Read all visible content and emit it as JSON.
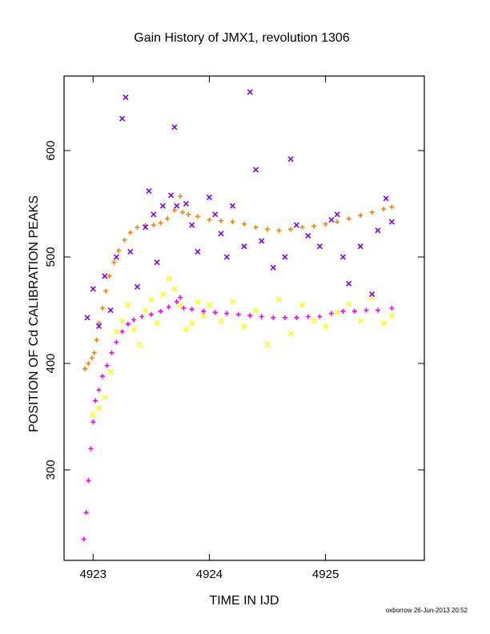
{
  "chart_data": {
    "type": "scatter",
    "title": "Gain History of JMX1, revolution 1306",
    "xlabel": "TIME IN IJD",
    "ylabel": "POSITION OF Cd CALIBRATION PEAKS",
    "xlim": [
      4922.75,
      4925.85
    ],
    "ylim": [
      215,
      670
    ],
    "xticks": [
      "4923",
      "4924",
      "4925"
    ],
    "yticks": [
      "300",
      "400",
      "500",
      "600"
    ],
    "grid": false,
    "footer": "oxborrow 26-Jun-2013 20:52",
    "series": [
      {
        "marker": "plus",
        "color": "#ff8000",
        "points": [
          [
            4922.93,
            395
          ],
          [
            4922.96,
            400
          ],
          [
            4922.99,
            405
          ],
          [
            4923.01,
            410
          ],
          [
            4923.03,
            422
          ],
          [
            4923.05,
            438
          ],
          [
            4923.08,
            452
          ],
          [
            4923.11,
            468
          ],
          [
            4923.14,
            482
          ],
          [
            4923.18,
            495
          ],
          [
            4923.22,
            506
          ],
          [
            4923.27,
            516
          ],
          [
            4923.32,
            523
          ],
          [
            4923.38,
            528
          ],
          [
            4923.45,
            530
          ],
          [
            4923.52,
            530
          ],
          [
            4923.58,
            532
          ],
          [
            4923.64,
            536
          ],
          [
            4923.7,
            544
          ],
          [
            4923.75,
            557
          ],
          [
            4923.77,
            542
          ],
          [
            4923.82,
            540
          ],
          [
            4923.9,
            538
          ],
          [
            4924.0,
            535
          ],
          [
            4924.1,
            534
          ],
          [
            4924.2,
            533
          ],
          [
            4924.3,
            531
          ],
          [
            4924.4,
            528
          ],
          [
            4924.5,
            526
          ],
          [
            4924.6,
            525
          ],
          [
            4924.7,
            526
          ],
          [
            4924.8,
            528
          ],
          [
            4924.9,
            529
          ],
          [
            4925.0,
            531
          ],
          [
            4925.1,
            533
          ],
          [
            4925.2,
            536
          ],
          [
            4925.3,
            539
          ],
          [
            4925.4,
            542
          ],
          [
            4925.5,
            545
          ],
          [
            4925.57,
            547
          ]
        ]
      },
      {
        "marker": "plus",
        "color": "#ff00ff",
        "points": [
          [
            4922.92,
            235
          ],
          [
            4922.94,
            260
          ],
          [
            4922.96,
            290
          ],
          [
            4922.98,
            320
          ],
          [
            4923.0,
            345
          ],
          [
            4923.02,
            365
          ],
          [
            4923.05,
            375
          ],
          [
            4923.08,
            388
          ],
          [
            4923.12,
            398
          ],
          [
            4923.16,
            410
          ],
          [
            4923.2,
            420
          ],
          [
            4923.25,
            430
          ],
          [
            4923.3,
            437
          ],
          [
            4923.35,
            441
          ],
          [
            4923.42,
            444
          ],
          [
            4923.5,
            446
          ],
          [
            4923.58,
            449
          ],
          [
            4923.65,
            453
          ],
          [
            4923.72,
            458
          ],
          [
            4923.75,
            462
          ],
          [
            4923.78,
            452
          ],
          [
            4923.85,
            451
          ],
          [
            4923.95,
            449
          ],
          [
            4924.05,
            448
          ],
          [
            4924.15,
            447
          ],
          [
            4924.25,
            446
          ],
          [
            4924.35,
            445
          ],
          [
            4924.45,
            444
          ],
          [
            4924.55,
            443
          ],
          [
            4924.65,
            443
          ],
          [
            4924.75,
            443
          ],
          [
            4924.85,
            444
          ],
          [
            4924.95,
            444
          ],
          [
            4925.05,
            447
          ],
          [
            4925.15,
            449
          ],
          [
            4925.25,
            449
          ],
          [
            4925.35,
            450
          ],
          [
            4925.45,
            450
          ],
          [
            4925.57,
            452
          ]
        ]
      },
      {
        "marker": "cross",
        "color": "#ffff00",
        "points": [
          [
            4923.0,
            352
          ],
          [
            4923.05,
            358
          ],
          [
            4923.1,
            368
          ],
          [
            4923.15,
            392
          ],
          [
            4923.2,
            430
          ],
          [
            4923.25,
            440
          ],
          [
            4923.3,
            455
          ],
          [
            4923.35,
            432
          ],
          [
            4923.4,
            418
          ],
          [
            4923.45,
            450
          ],
          [
            4923.5,
            460
          ],
          [
            4923.55,
            438
          ],
          [
            4923.6,
            465
          ],
          [
            4923.65,
            480
          ],
          [
            4923.7,
            470
          ],
          [
            4923.75,
            455
          ],
          [
            4923.8,
            432
          ],
          [
            4923.85,
            438
          ],
          [
            4923.9,
            458
          ],
          [
            4923.95,
            445
          ],
          [
            4924.0,
            455
          ],
          [
            4924.1,
            440
          ],
          [
            4924.2,
            458
          ],
          [
            4924.3,
            435
          ],
          [
            4924.4,
            450
          ],
          [
            4924.5,
            418
          ],
          [
            4924.6,
            460
          ],
          [
            4924.7,
            428
          ],
          [
            4924.8,
            455
          ],
          [
            4924.9,
            440
          ],
          [
            4925.0,
            435
          ],
          [
            4925.1,
            448
          ],
          [
            4925.2,
            456
          ],
          [
            4925.3,
            440
          ],
          [
            4925.4,
            462
          ],
          [
            4925.5,
            438
          ],
          [
            4925.57,
            445
          ]
        ]
      },
      {
        "marker": "cross",
        "color": "#8000ff",
        "points": [
          [
            4922.95,
            443
          ],
          [
            4923.0,
            470
          ],
          [
            4923.05,
            435
          ],
          [
            4923.1,
            482
          ],
          [
            4923.15,
            450
          ],
          [
            4923.2,
            500
          ],
          [
            4923.25,
            630
          ],
          [
            4923.28,
            650
          ],
          [
            4923.32,
            505
          ],
          [
            4923.38,
            472
          ],
          [
            4923.45,
            528
          ],
          [
            4923.48,
            562
          ],
          [
            4923.52,
            540
          ],
          [
            4923.55,
            495
          ],
          [
            4923.6,
            548
          ],
          [
            4923.67,
            558
          ],
          [
            4923.7,
            622
          ],
          [
            4923.72,
            548
          ],
          [
            4923.8,
            550
          ],
          [
            4923.85,
            530
          ],
          [
            4923.9,
            505
          ],
          [
            4924.0,
            556
          ],
          [
            4924.05,
            540
          ],
          [
            4924.1,
            522
          ],
          [
            4924.15,
            500
          ],
          [
            4924.2,
            548
          ],
          [
            4924.3,
            510
          ],
          [
            4924.35,
            655
          ],
          [
            4924.4,
            582
          ],
          [
            4924.45,
            515
          ],
          [
            4924.55,
            490
          ],
          [
            4924.65,
            500
          ],
          [
            4924.7,
            592
          ],
          [
            4924.75,
            530
          ],
          [
            4924.85,
            520
          ],
          [
            4924.95,
            510
          ],
          [
            4925.05,
            535
          ],
          [
            4925.1,
            540
          ],
          [
            4925.15,
            500
          ],
          [
            4925.2,
            475
          ],
          [
            4925.3,
            510
          ],
          [
            4925.4,
            465
          ],
          [
            4925.45,
            525
          ],
          [
            4925.52,
            555
          ],
          [
            4925.57,
            533
          ]
        ]
      }
    ]
  }
}
